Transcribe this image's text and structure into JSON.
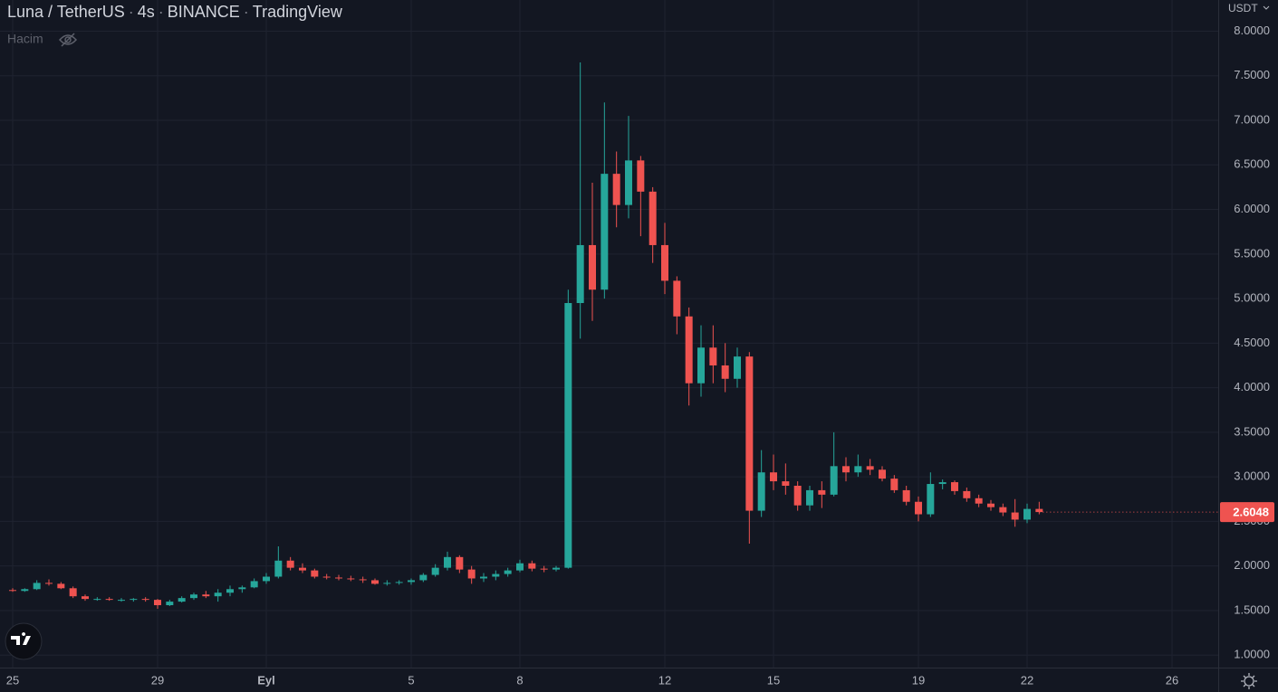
{
  "chart_data": {
    "type": "candlestick",
    "symbol": "Luna / TetherUS",
    "interval": "4s",
    "exchange": "BINANCE",
    "source": "TradingView",
    "volume_label": "Hacim",
    "currency": "USDT",
    "up_color": "#26a69a",
    "down_color": "#ef5350",
    "grid": true,
    "x": [
      0,
      8,
      16,
      24,
      32,
      40,
      48,
      56,
      64,
      72,
      80,
      88,
      96,
      104,
      112,
      120,
      128,
      136,
      144,
      152,
      160,
      168,
      176,
      184,
      192,
      200,
      208,
      216,
      224,
      232,
      240,
      248,
      256,
      264,
      272,
      280,
      288,
      296,
      304,
      312,
      320,
      328,
      336,
      344,
      352,
      360,
      368,
      376,
      384,
      392,
      400,
      408,
      416,
      424,
      432,
      440,
      448,
      456,
      464,
      472,
      480,
      488,
      496,
      504,
      512,
      520,
      528,
      536,
      544,
      552,
      560,
      568,
      576,
      584,
      592,
      600,
      608,
      616,
      624,
      632,
      640,
      648,
      656,
      664,
      672,
      680
    ],
    "open": [
      1.73,
      1.72,
      1.74,
      1.81,
      1.8,
      1.75,
      1.66,
      1.63,
      1.63,
      1.62,
      1.62,
      1.63,
      1.62,
      1.56,
      1.6,
      1.64,
      1.68,
      1.66,
      1.7,
      1.74,
      1.76,
      1.83,
      1.88,
      2.06,
      1.98,
      1.95,
      1.88,
      1.87,
      1.86,
      1.85,
      1.84,
      1.8,
      1.81,
      1.82,
      1.84,
      1.9,
      1.98,
      2.1,
      1.96,
      1.86,
      1.88,
      1.91,
      1.95,
      2.03,
      1.97,
      1.96,
      1.98,
      4.95,
      5.6,
      5.1,
      6.4,
      6.05,
      6.55,
      6.2,
      5.6,
      5.2,
      4.8,
      4.05,
      4.45,
      4.25,
      4.1,
      4.35,
      2.62,
      3.05,
      2.95,
      2.9,
      2.68,
      2.85,
      2.8,
      3.12,
      3.05,
      3.12,
      3.08,
      2.98,
      2.85,
      2.72,
      2.58,
      2.92,
      2.94,
      2.84,
      2.76,
      2.7,
      2.66,
      2.6,
      2.52,
      2.64
    ],
    "high": [
      1.75,
      1.75,
      1.84,
      1.85,
      1.82,
      1.77,
      1.68,
      1.65,
      1.65,
      1.64,
      1.64,
      1.65,
      1.63,
      1.62,
      1.66,
      1.7,
      1.72,
      1.74,
      1.78,
      1.78,
      1.86,
      1.92,
      2.22,
      2.1,
      2.03,
      1.97,
      1.91,
      1.9,
      1.89,
      1.88,
      1.86,
      1.84,
      1.84,
      1.86,
      1.92,
      2.02,
      2.16,
      2.12,
      2.0,
      1.92,
      1.95,
      1.98,
      2.07,
      2.06,
      2.0,
      2.0,
      5.1,
      7.65,
      6.3,
      7.2,
      6.65,
      7.05,
      6.6,
      6.25,
      5.85,
      5.25,
      4.9,
      4.7,
      4.7,
      4.5,
      4.45,
      4.4,
      3.3,
      3.25,
      3.15,
      2.95,
      2.9,
      2.95,
      3.5,
      3.22,
      3.25,
      3.2,
      3.12,
      3.02,
      2.9,
      2.78,
      3.05,
      2.97,
      2.96,
      2.88,
      2.8,
      2.74,
      2.7,
      2.75,
      2.7,
      2.72
    ],
    "low": [
      1.71,
      1.71,
      1.73,
      1.78,
      1.74,
      1.64,
      1.61,
      1.61,
      1.61,
      1.6,
      1.6,
      1.6,
      1.52,
      1.55,
      1.59,
      1.62,
      1.64,
      1.6,
      1.66,
      1.7,
      1.75,
      1.8,
      1.86,
      1.95,
      1.92,
      1.86,
      1.85,
      1.84,
      1.83,
      1.81,
      1.79,
      1.78,
      1.79,
      1.79,
      1.82,
      1.88,
      1.95,
      1.92,
      1.8,
      1.82,
      1.84,
      1.88,
      1.93,
      1.94,
      1.93,
      1.94,
      1.97,
      4.55,
      4.75,
      5.0,
      5.8,
      5.9,
      5.7,
      5.4,
      5.05,
      4.6,
      3.8,
      3.9,
      4.05,
      3.95,
      4.0,
      2.25,
      2.55,
      2.85,
      2.8,
      2.62,
      2.62,
      2.65,
      2.78,
      2.95,
      3.0,
      3.02,
      2.95,
      2.82,
      2.68,
      2.5,
      2.55,
      2.86,
      2.8,
      2.72,
      2.66,
      2.62,
      2.56,
      2.44,
      2.48,
      2.58
    ],
    "close": [
      1.72,
      1.74,
      1.81,
      1.8,
      1.75,
      1.66,
      1.63,
      1.63,
      1.62,
      1.62,
      1.63,
      1.62,
      1.56,
      1.6,
      1.64,
      1.68,
      1.66,
      1.7,
      1.74,
      1.76,
      1.83,
      1.88,
      2.06,
      1.98,
      1.95,
      1.88,
      1.87,
      1.86,
      1.85,
      1.84,
      1.8,
      1.81,
      1.82,
      1.84,
      1.9,
      1.98,
      2.1,
      1.96,
      1.86,
      1.88,
      1.91,
      1.95,
      2.03,
      1.97,
      1.96,
      1.98,
      4.95,
      5.6,
      5.1,
      6.4,
      6.05,
      6.55,
      6.2,
      5.6,
      5.2,
      4.8,
      4.05,
      4.45,
      4.25,
      4.1,
      4.35,
      2.62,
      3.05,
      2.95,
      2.9,
      2.68,
      2.85,
      2.8,
      3.12,
      3.05,
      3.12,
      3.08,
      2.98,
      2.85,
      2.72,
      2.58,
      2.92,
      2.94,
      2.84,
      2.76,
      2.7,
      2.66,
      2.6,
      2.52,
      2.64,
      2.6048
    ],
    "xlim": [
      -8.4,
      798.6
    ],
    "xticks": [
      {
        "value": 0,
        "label": "25"
      },
      {
        "value": 96,
        "label": "29"
      },
      {
        "value": 168,
        "label": "Eyl"
      },
      {
        "value": 264,
        "label": "5"
      },
      {
        "value": 336,
        "label": "8"
      },
      {
        "value": 432,
        "label": "12"
      },
      {
        "value": 504,
        "label": "15"
      },
      {
        "value": 600,
        "label": "19"
      },
      {
        "value": 672,
        "label": "22"
      },
      {
        "value": 768,
        "label": "26"
      }
    ],
    "ylim": [
      0.86,
      8.35
    ],
    "yticks": [
      {
        "value": 1,
        "label": "1.0000"
      },
      {
        "value": 1.5,
        "label": "1.5000"
      },
      {
        "value": 2,
        "label": "2.0000"
      },
      {
        "value": 2.5,
        "label": "2.5000"
      },
      {
        "value": 3,
        "label": "3.0000"
      },
      {
        "value": 3.5,
        "label": "3.5000"
      },
      {
        "value": 4,
        "label": "4.0000"
      },
      {
        "value": 4.5,
        "label": "4.5000"
      },
      {
        "value": 5,
        "label": "5.0000"
      },
      {
        "value": 5.5,
        "label": "5.5000"
      },
      {
        "value": 6,
        "label": "6.0000"
      },
      {
        "value": 6.5,
        "label": "6.5000"
      },
      {
        "value": 7,
        "label": "7.0000"
      },
      {
        "value": 7.5,
        "label": "7.5000"
      },
      {
        "value": 8,
        "label": "8.0000"
      }
    ]
  }
}
